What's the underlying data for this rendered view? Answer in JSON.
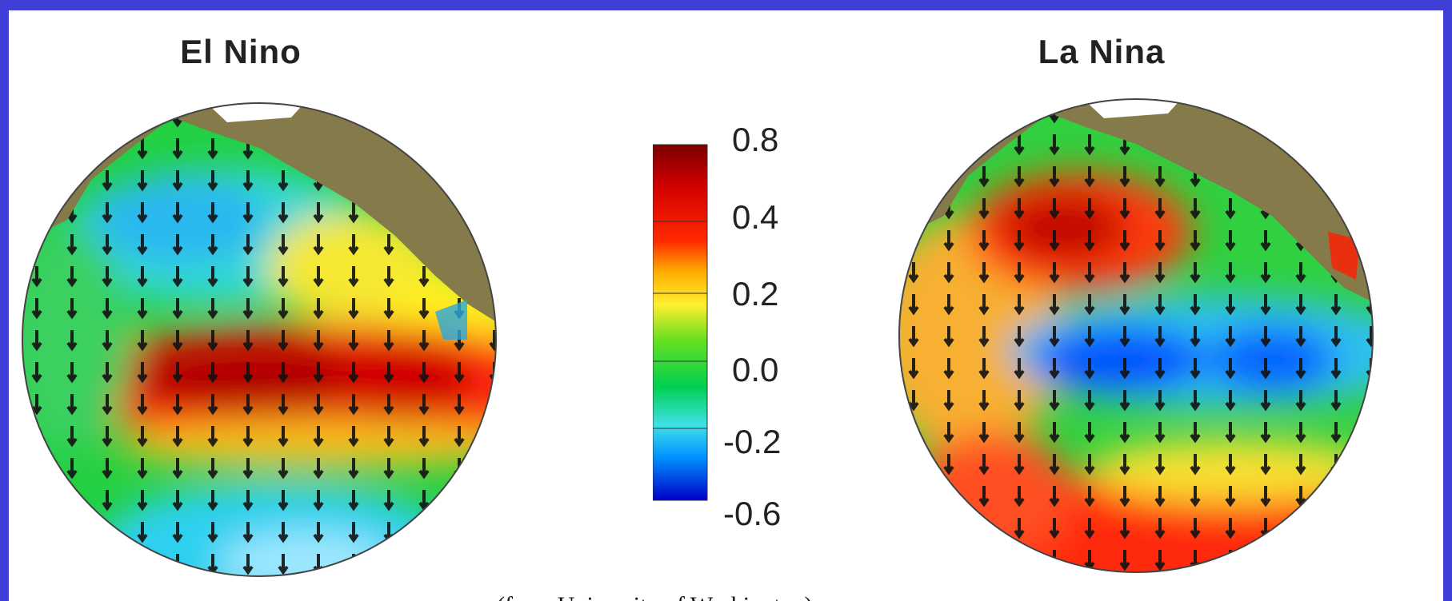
{
  "panels": [
    {
      "title": "El Nino",
      "pattern": "warm-equatorial-pacific"
    },
    {
      "title": "La Nina",
      "pattern": "cool-equatorial-pacific"
    }
  ],
  "colorbar": {
    "tick_labels": [
      "0.8",
      "0.4",
      "0.2",
      "0.0",
      "-0.2",
      "-0.6"
    ],
    "colors": [
      "#8b0000",
      "#ff1a00",
      "#ffb000",
      "#d8f000",
      "#00d84a",
      "#00c8f0",
      "#0060ff",
      "#0000c8"
    ]
  },
  "caption": "(from University of Washington)",
  "colors": {
    "border": "#3f3fd8",
    "land": "#857a4a",
    "ice": "#ffffff"
  }
}
